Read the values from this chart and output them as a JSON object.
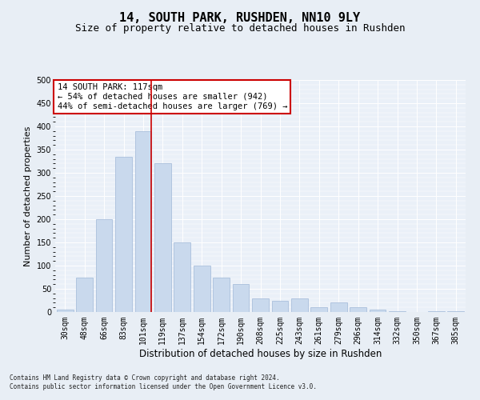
{
  "title": "14, SOUTH PARK, RUSHDEN, NN10 9LY",
  "subtitle": "Size of property relative to detached houses in Rushden",
  "xlabel": "Distribution of detached houses by size in Rushden",
  "ylabel": "Number of detached properties",
  "categories": [
    "30sqm",
    "48sqm",
    "66sqm",
    "83sqm",
    "101sqm",
    "119sqm",
    "137sqm",
    "154sqm",
    "172sqm",
    "190sqm",
    "208sqm",
    "225sqm",
    "243sqm",
    "261sqm",
    "279sqm",
    "296sqm",
    "314sqm",
    "332sqm",
    "350sqm",
    "367sqm",
    "385sqm"
  ],
  "values": [
    5,
    75,
    200,
    335,
    390,
    320,
    150,
    100,
    75,
    60,
    30,
    25,
    30,
    10,
    20,
    10,
    5,
    1,
    0,
    2,
    2
  ],
  "bar_color": "#c9d9ed",
  "bar_edge_color": "#a0b8d8",
  "vline_index": 4.425,
  "vline_color": "#cc0000",
  "annotation_text": "14 SOUTH PARK: 117sqm\n← 54% of detached houses are smaller (942)\n44% of semi-detached houses are larger (769) →",
  "annotation_box_color": "#ffffff",
  "annotation_box_edge_color": "#cc0000",
  "ylim": [
    0,
    500
  ],
  "yticks": [
    0,
    50,
    100,
    150,
    200,
    250,
    300,
    350,
    400,
    450,
    500
  ],
  "bg_color": "#e8eef5",
  "plot_bg_color": "#eaf0f8",
  "footer_text": "Contains HM Land Registry data © Crown copyright and database right 2024.\nContains public sector information licensed under the Open Government Licence v3.0.",
  "title_fontsize": 11,
  "subtitle_fontsize": 9,
  "xlabel_fontsize": 8.5,
  "ylabel_fontsize": 8,
  "tick_fontsize": 7,
  "annotation_fontsize": 7.5,
  "footer_fontsize": 5.5
}
